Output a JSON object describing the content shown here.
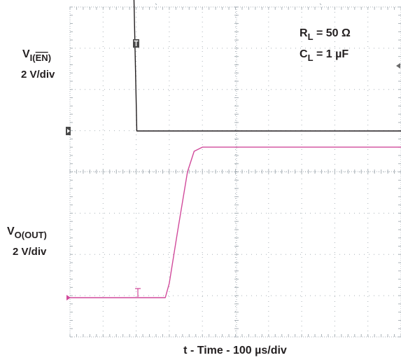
{
  "chart_data": {
    "type": "line",
    "xlabel": "t - Time - 100 µs/div",
    "grid": true,
    "x_units": "µs",
    "x_range": [
      0,
      1000
    ],
    "x_per_div": 100,
    "y_units": "V",
    "y_per_div": 2,
    "conditions": {
      "rl": {
        "main": "R",
        "sub": "L",
        "value": " = 50 Ω"
      },
      "cl": {
        "main": "C",
        "sub": "L",
        "value": " = 1 µF"
      }
    },
    "series": [
      {
        "id": "ch1",
        "label": {
          "main": "V",
          "sub": "I(EN)",
          "overline": "EN",
          "scale": "2 V/div"
        },
        "color": "#231f20",
        "points": [
          [
            0,
            7.4
          ],
          [
            192,
            7.4
          ],
          [
            202,
            0
          ],
          [
            1000,
            0
          ]
        ]
      },
      {
        "id": "ch2",
        "label": {
          "main": "V",
          "sub": "O(OUT)",
          "scale": "2 V/div"
        },
        "color": "#d14a9b",
        "points": [
          [
            0,
            0
          ],
          [
            288,
            0
          ],
          [
            300,
            0.7
          ],
          [
            325,
            3.2
          ],
          [
            355,
            6.1
          ],
          [
            375,
            7.1
          ],
          [
            400,
            7.3
          ],
          [
            1000,
            7.3
          ]
        ]
      }
    ]
  }
}
